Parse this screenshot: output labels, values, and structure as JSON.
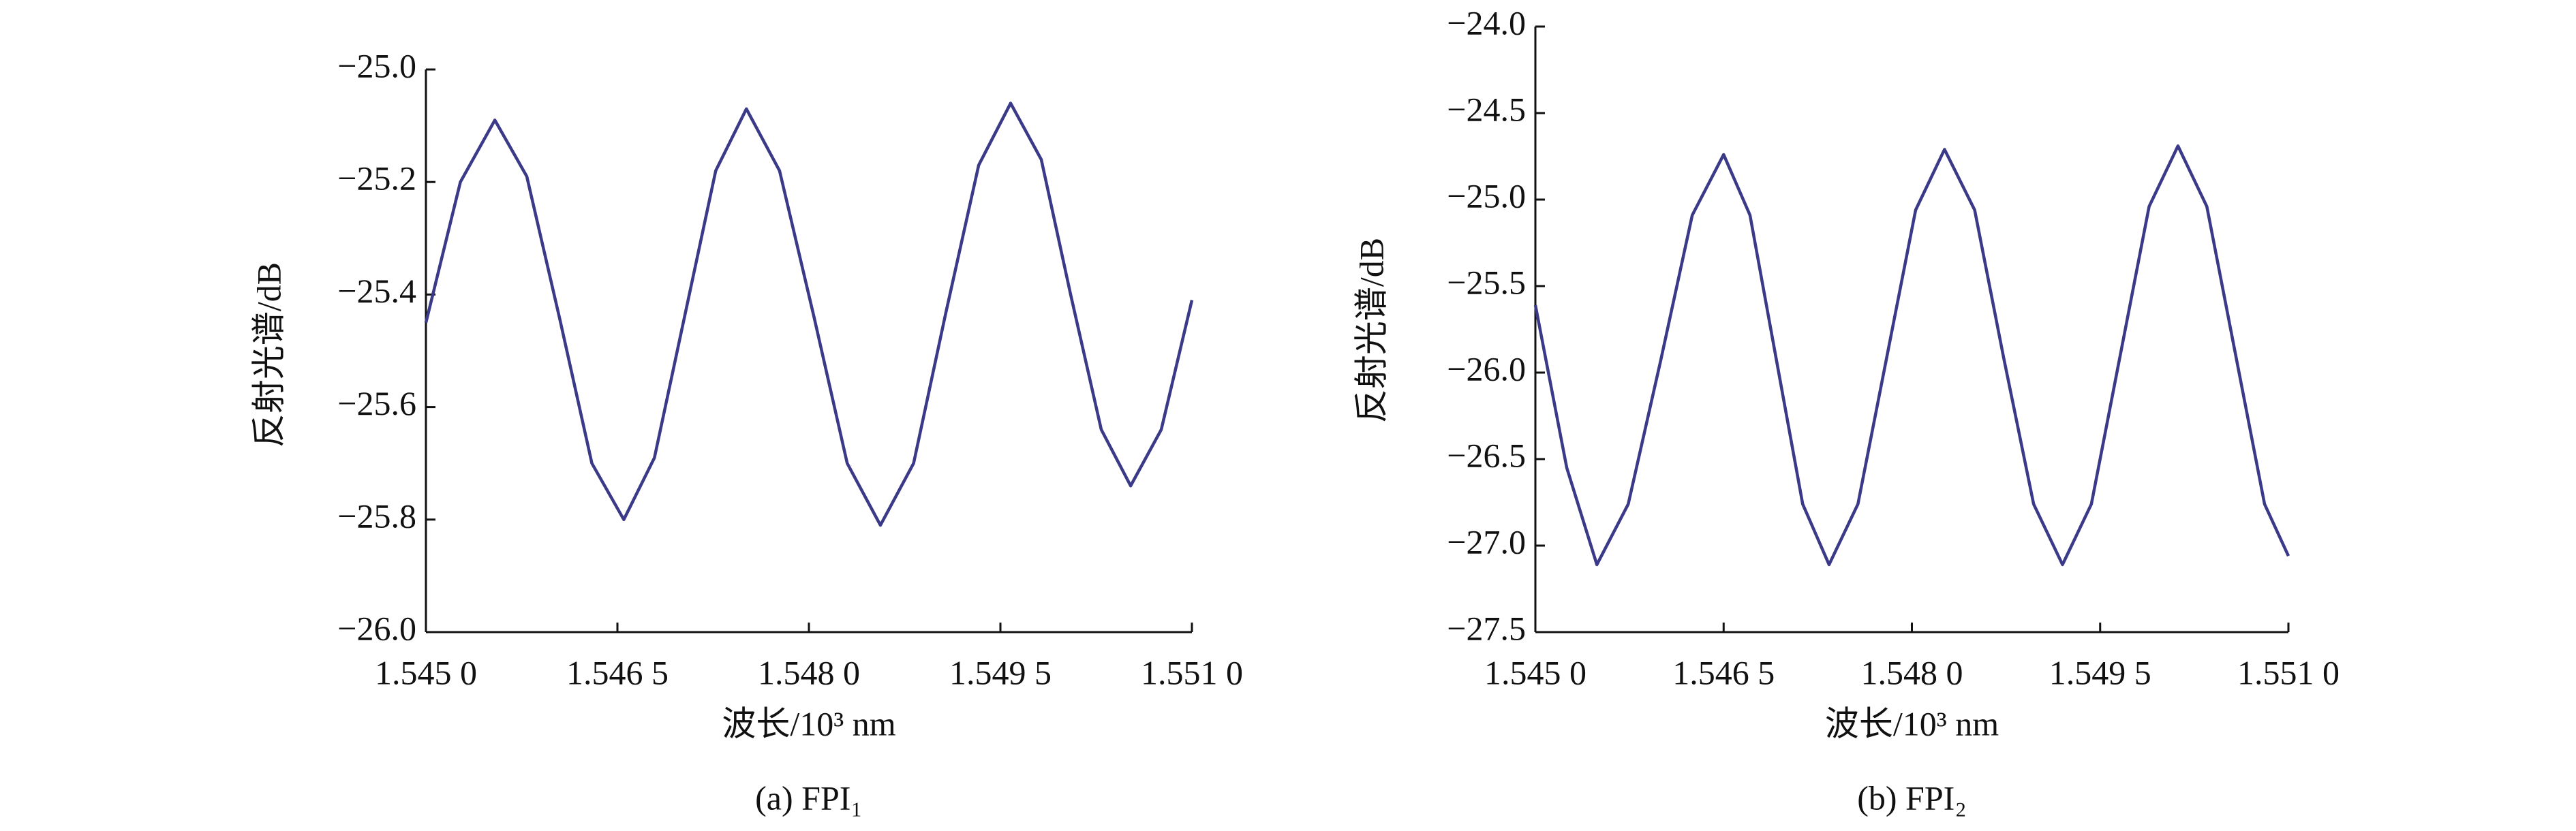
{
  "chart_data": [
    {
      "type": "line",
      "caption": "(a) FPI₁",
      "xlabel": "波长/10³ nm",
      "ylabel": "反射光谱/dB",
      "color": "#3a3a88",
      "xlim": [
        1.545,
        1.551
      ],
      "xticks": [
        {
          "value": 1.545,
          "label": "1.545 0"
        },
        {
          "value": 1.5465,
          "label": "1.546 5"
        },
        {
          "value": 1.548,
          "label": "1.548 0"
        },
        {
          "value": 1.5495,
          "label": "1.549 5"
        },
        {
          "value": 1.551,
          "label": "1.551 0"
        }
      ],
      "ylim": [
        -26.0,
        -25.0
      ],
      "yticks": [
        {
          "value": -26.0,
          "label": "−26.0"
        },
        {
          "value": -25.8,
          "label": "−25.8"
        },
        {
          "value": -25.6,
          "label": "−25.6"
        },
        {
          "value": -25.4,
          "label": "−25.4"
        },
        {
          "value": -25.2,
          "label": "−25.2"
        },
        {
          "value": -25.0,
          "label": "−25.0"
        }
      ],
      "x": [
        1.545,
        1.54527,
        1.54554,
        1.54579,
        1.54605,
        1.5463,
        1.54655,
        1.54679,
        1.54703,
        1.54727,
        1.54751,
        1.54777,
        1.54804,
        1.5483,
        1.54856,
        1.54882,
        1.54907,
        1.54933,
        1.54958,
        1.54982,
        1.55005,
        1.55029,
        1.55052,
        1.55076,
        1.551
      ],
      "values": [
        -25.45,
        -25.2,
        -25.09,
        -25.19,
        -25.445,
        -25.7,
        -25.8,
        -25.69,
        -25.435,
        -25.18,
        -25.07,
        -25.18,
        -25.44,
        -25.7,
        -25.81,
        -25.7,
        -25.435,
        -25.17,
        -25.06,
        -25.16,
        -25.4,
        -25.64,
        -25.74,
        -25.64,
        -25.41
      ]
    },
    {
      "type": "line",
      "caption": "(b) FPI₂",
      "xlabel": "波长/10³ nm",
      "ylabel": "反射光谱/dB",
      "color": "#3a3a88",
      "xlim": [
        1.545,
        1.551
      ],
      "xticks": [
        {
          "value": 1.545,
          "label": "1.545 0"
        },
        {
          "value": 1.5465,
          "label": "1.546 5"
        },
        {
          "value": 1.548,
          "label": "1.548 0"
        },
        {
          "value": 1.5495,
          "label": "1.549 5"
        },
        {
          "value": 1.551,
          "label": "1.551 0"
        }
      ],
      "ylim": [
        -27.5,
        -24.0
      ],
      "yticks": [
        {
          "value": -27.5,
          "label": "−27.5"
        },
        {
          "value": -27.0,
          "label": "−27.0"
        },
        {
          "value": -26.5,
          "label": "−26.5"
        },
        {
          "value": -26.0,
          "label": "−26.0"
        },
        {
          "value": -25.5,
          "label": "−25.5"
        },
        {
          "value": -25.0,
          "label": "−25.0"
        },
        {
          "value": -24.5,
          "label": "−24.5"
        },
        {
          "value": -24.0,
          "label": "−24.0"
        }
      ],
      "x": [
        1.545,
        1.54525,
        1.54549,
        1.54574,
        1.546,
        1.54625,
        1.5465,
        1.54671,
        1.54692,
        1.54713,
        1.54734,
        1.54757,
        1.5478,
        1.54803,
        1.54826,
        1.5485,
        1.54873,
        1.54897,
        1.5492,
        1.54943,
        1.54966,
        1.54989,
        1.55012,
        1.55035,
        1.55058,
        1.55081,
        1.551
      ],
      "values": [
        -25.61,
        -26.55,
        -27.11,
        -26.76,
        -25.925,
        -25.09,
        -24.74,
        -25.09,
        -25.925,
        -26.76,
        -27.11,
        -26.76,
        -25.91,
        -25.06,
        -24.71,
        -25.06,
        -25.91,
        -26.76,
        -27.11,
        -26.76,
        -25.9,
        -25.04,
        -24.69,
        -25.04,
        -25.9,
        -26.76,
        -27.06
      ]
    }
  ]
}
